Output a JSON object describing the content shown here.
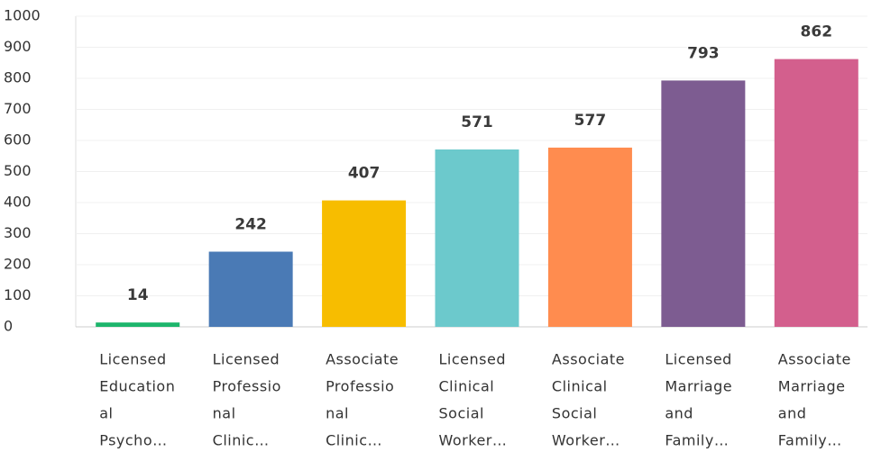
{
  "chart_data": {
    "type": "bar",
    "categories": [
      [
        "Licensed",
        "Education",
        "al",
        "Psycho…"
      ],
      [
        "Licensed",
        "Professio",
        "nal",
        "Clinic…"
      ],
      [
        "Associate",
        "Professio",
        "nal",
        "Clinic…"
      ],
      [
        "Licensed",
        "Clinical",
        "Social",
        "Worker…"
      ],
      [
        "Associate",
        "Clinical",
        "Social",
        "Worker…"
      ],
      [
        "Licensed",
        "Marriage",
        "and",
        "Family…"
      ],
      [
        "Associate",
        "Marriage",
        "and",
        "Family…"
      ]
    ],
    "values": [
      14,
      242,
      407,
      571,
      577,
      793,
      862
    ],
    "colors": [
      "#1db56c",
      "#4a7ab5",
      "#f7bd00",
      "#6cc9cc",
      "#ff8c4f",
      "#7d5c91",
      "#d35f8d"
    ],
    "ylim": [
      0,
      1000
    ],
    "yticks": [
      0,
      100,
      200,
      300,
      400,
      500,
      600,
      700,
      800,
      900,
      1000
    ],
    "grid": true
  }
}
